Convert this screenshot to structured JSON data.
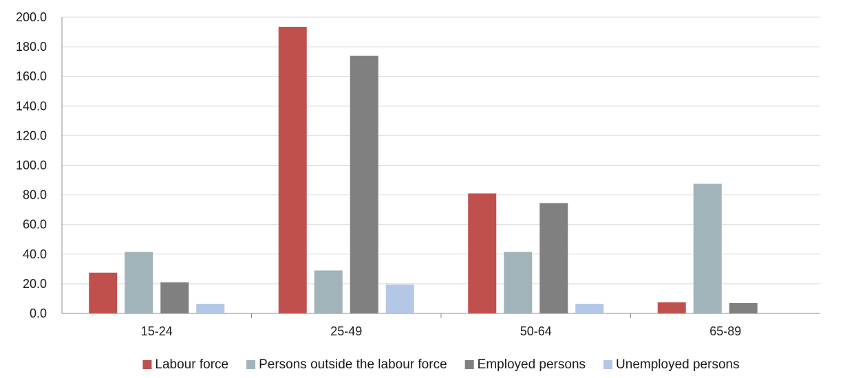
{
  "chart_data": {
    "type": "bar",
    "title": "",
    "xlabel": "",
    "ylabel": "",
    "categories": [
      "15-24",
      "25-49",
      "50-64",
      "65-89"
    ],
    "ylim": [
      0,
      200
    ],
    "ytick_step": 20,
    "ytick_labels": [
      "0.0",
      "20.0",
      "40.0",
      "60.0",
      "80.0",
      "100.0",
      "120.0",
      "140.0",
      "160.0",
      "180.0",
      "200.0"
    ],
    "grid": true,
    "legend_position": "bottom",
    "series": [
      {
        "name": "Labour force",
        "color": "#c0504d",
        "values": [
          27.5,
          193.5,
          81.0,
          7.5
        ]
      },
      {
        "name": "Persons outside the labour force",
        "color": "#a0b4ba",
        "values": [
          41.5,
          29.0,
          41.5,
          87.5
        ]
      },
      {
        "name": "Employed persons",
        "color": "#808080",
        "values": [
          21.0,
          174.0,
          74.5,
          7.0
        ]
      },
      {
        "name": "Unemployed persons",
        "color": "#b4c7e7",
        "values": [
          6.5,
          19.5,
          6.5,
          0.0
        ]
      }
    ]
  }
}
